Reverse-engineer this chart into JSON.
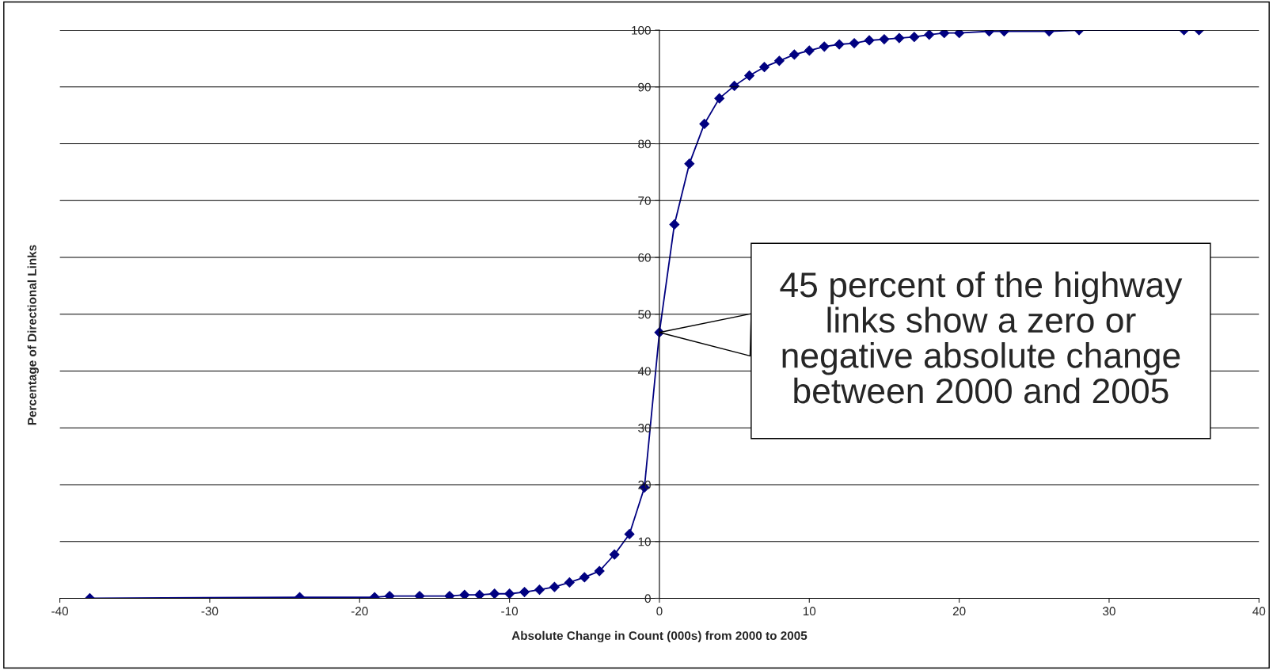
{
  "chart_data": {
    "type": "line",
    "xlabel": "Absolute Change in Count (000s) from 2000 to 2005",
    "ylabel": "Percentage of Directional Links",
    "x": [
      -38,
      -24,
      -19,
      -18,
      -16,
      -14,
      -13,
      -12,
      -11,
      -10,
      -9,
      -8,
      -7,
      -6,
      -5,
      -4,
      -3,
      -2,
      -1,
      0,
      1,
      2,
      3,
      4,
      5,
      6,
      7,
      8,
      9,
      10,
      11,
      12,
      13,
      14,
      15,
      16,
      17,
      18,
      19,
      20,
      22,
      23,
      26,
      28,
      35,
      36
    ],
    "series": [
      {
        "color": "#000080",
        "values": [
          0,
          0.2,
          0.2,
          0.4,
          0.4,
          0.4,
          0.6,
          0.6,
          0.8,
          0.8,
          1.1,
          1.5,
          2,
          2.8,
          3.7,
          4.8,
          7.7,
          11.3,
          19.5,
          46.8,
          65.8,
          76.5,
          83.5,
          88,
          90.2,
          92,
          93.5,
          94.6,
          95.7,
          96.4,
          97.1,
          97.5,
          97.7,
          98.2,
          98.4,
          98.6,
          98.8,
          99.2,
          99.5,
          99.5,
          99.8,
          99.8,
          99.8,
          100,
          100,
          100
        ]
      }
    ],
    "xlim": [
      -40,
      40
    ],
    "xticks": [
      -40,
      -30,
      -20,
      -10,
      0,
      10,
      20,
      30,
      40
    ],
    "ylim": [
      0,
      100
    ],
    "yticks": [
      0,
      10,
      20,
      30,
      40,
      50,
      60,
      70,
      80,
      90,
      100
    ],
    "grid": "y",
    "marker": "diamond",
    "line_style": "solid",
    "legend": false,
    "annotations": [
      {
        "text": "45 percent of the highway\nlinks show a zero or\nnegative absolute change\nbetween 2000 and 2005",
        "x": 0,
        "y": 46.8
      }
    ]
  }
}
